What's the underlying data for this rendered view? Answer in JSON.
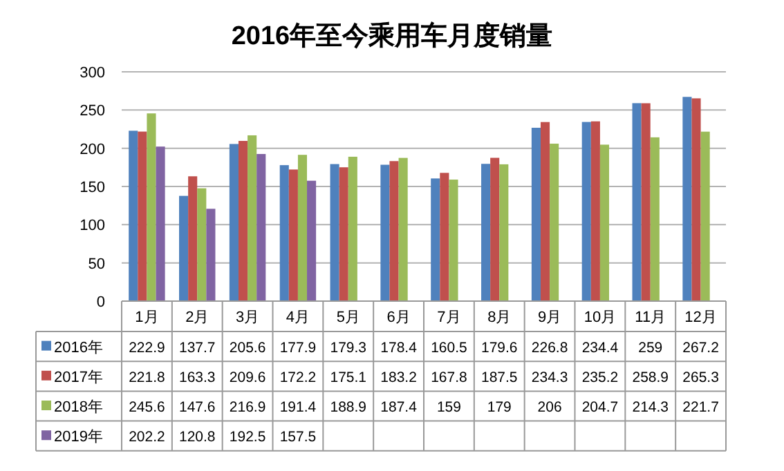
{
  "chart_data": {
    "type": "bar",
    "title": "2016年至今乘用车月度销量",
    "categories": [
      "1月",
      "2月",
      "3月",
      "4月",
      "5月",
      "6月",
      "7月",
      "8月",
      "9月",
      "10月",
      "11月",
      "12月"
    ],
    "series": [
      {
        "name": "2016年",
        "color": "#4f81bd",
        "values": [
          222.9,
          137.7,
          205.6,
          177.9,
          179.3,
          178.4,
          160.5,
          179.6,
          226.8,
          234.4,
          259,
          267.2
        ]
      },
      {
        "name": "2017年",
        "color": "#c0504d",
        "values": [
          221.8,
          163.3,
          209.6,
          172.2,
          175.1,
          183.2,
          167.8,
          187.5,
          234.3,
          235.2,
          258.9,
          265.3
        ]
      },
      {
        "name": "2018年",
        "color": "#9bbb59",
        "values": [
          245.6,
          147.6,
          216.9,
          191.4,
          188.9,
          187.4,
          159,
          179,
          206,
          204.7,
          214.3,
          221.7
        ]
      },
      {
        "name": "2019年",
        "color": "#8064a2",
        "values": [
          202.2,
          120.8,
          192.5,
          157.5,
          null,
          null,
          null,
          null,
          null,
          null,
          null,
          null
        ]
      }
    ],
    "ylim": [
      0,
      300
    ],
    "yticks": [
      0,
      50,
      100,
      150,
      200,
      250,
      300
    ],
    "grid": "y",
    "legend": "bottom",
    "data_labels": true
  }
}
